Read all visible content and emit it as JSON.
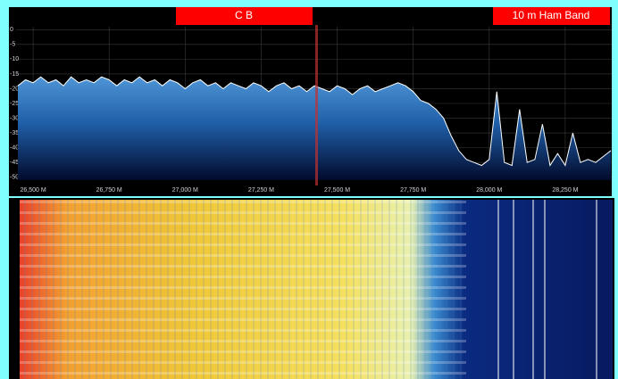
{
  "band_labels": [
    "C B",
    "10 m Ham Band"
  ],
  "chart_data": {
    "type": "line",
    "color": "#ffffff",
    "area": true,
    "grid": true,
    "x": [
      26450,
      26475,
      26500,
      26525,
      26550,
      26575,
      26600,
      26625,
      26650,
      26675,
      26700,
      26725,
      26750,
      26775,
      26800,
      26825,
      26850,
      26875,
      26900,
      26925,
      26950,
      26975,
      27000,
      27025,
      27050,
      27075,
      27100,
      27125,
      27150,
      27175,
      27200,
      27225,
      27250,
      27275,
      27300,
      27325,
      27350,
      27375,
      27400,
      27425,
      27450,
      27475,
      27500,
      27525,
      27550,
      27575,
      27600,
      27625,
      27650,
      27675,
      27700,
      27725,
      27750,
      27775,
      27800,
      27825,
      27850,
      27875,
      27900,
      27925,
      27950,
      27975,
      28000,
      28025,
      28050,
      28075,
      28100,
      28125,
      28150,
      28175,
      28200,
      28225,
      28250,
      28275,
      28300,
      28325,
      28350,
      28375,
      28400
    ],
    "values": [
      -19,
      -17,
      -18,
      -16,
      -18,
      -17,
      -19,
      -16,
      -18,
      -17,
      -18,
      -16,
      -17,
      -19,
      -17,
      -18,
      -16,
      -18,
      -17,
      -19,
      -17,
      -18,
      -20,
      -18,
      -17,
      -19,
      -18,
      -20,
      -18,
      -19,
      -20,
      -18,
      -19,
      -21,
      -19,
      -18,
      -20,
      -19,
      -21,
      -19,
      -20,
      -21,
      -19,
      -20,
      -22,
      -20,
      -19,
      -21,
      -20,
      -19,
      -18,
      -19,
      -21,
      -24,
      -25,
      -27,
      -30,
      -36,
      -41,
      -44,
      -45,
      -46,
      -44,
      -21,
      -45,
      -46,
      -27,
      -45,
      -44,
      -32,
      -46,
      -42,
      -46,
      -35,
      -45,
      -44,
      -45,
      -43,
      -41
    ],
    "xlim": [
      26444,
      28403
    ],
    "ylim": [
      -51,
      1
    ],
    "xticks": [
      {
        "value": 26500,
        "label": "26,500 M"
      },
      {
        "value": 26750,
        "label": "26,750 M"
      },
      {
        "value": 27000,
        "label": "27,000 M"
      },
      {
        "value": 27250,
        "label": "27,250 M"
      },
      {
        "value": 27500,
        "label": "27,500 M"
      },
      {
        "value": 27750,
        "label": "27,750 M"
      },
      {
        "value": 28000,
        "label": "28,000 M"
      },
      {
        "value": 28250,
        "label": "28,250 M"
      }
    ],
    "yticks": [
      0,
      -5,
      -10,
      -15,
      -20,
      -25,
      -30,
      -35,
      -40,
      -45,
      -50
    ]
  }
}
